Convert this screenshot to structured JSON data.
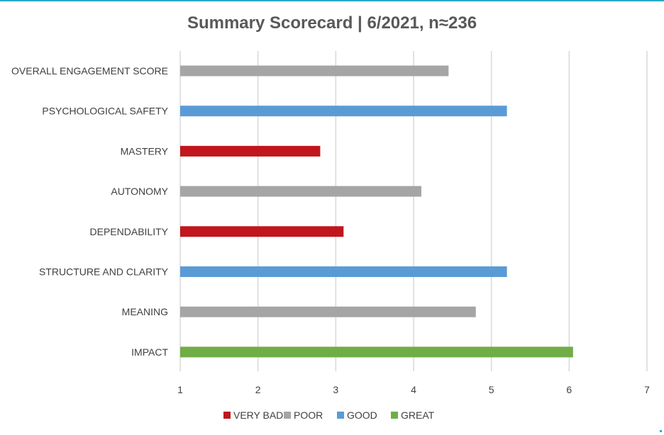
{
  "chart_data": {
    "type": "bar",
    "orientation": "horizontal",
    "title": "Summary Scorecard | 6/2021, n≈236",
    "xlim": [
      1,
      7
    ],
    "ticks": [
      "1",
      "2",
      "3",
      "4",
      "5",
      "6",
      "7"
    ],
    "grid": true,
    "legend_position": "bottom",
    "legend": [
      {
        "label": "VERY BAD",
        "color": "#c0161c"
      },
      {
        "label": "POOR",
        "color": "#a5a5a5"
      },
      {
        "label": "GOOD",
        "color": "#5b9bd5"
      },
      {
        "label": "GREAT",
        "color": "#70ad47"
      }
    ],
    "categories": [
      {
        "label": "OVERALL ENGAGEMENT SCORE",
        "value": 4.45,
        "rating": "POOR"
      },
      {
        "label": "PSYCHOLOGICAL SAFETY",
        "value": 5.2,
        "rating": "GOOD"
      },
      {
        "label": "MASTERY",
        "value": 2.8,
        "rating": "VERY BAD"
      },
      {
        "label": "AUTONOMY",
        "value": 4.1,
        "rating": "POOR"
      },
      {
        "label": "DEPENDABILITY",
        "value": 3.1,
        "rating": "VERY BAD"
      },
      {
        "label": "STRUCTURE AND CLARITY",
        "value": 5.2,
        "rating": "GOOD"
      },
      {
        "label": "MEANING",
        "value": 4.8,
        "rating": "POOR"
      },
      {
        "label": "IMPACT",
        "value": 6.05,
        "rating": "GREAT"
      }
    ]
  }
}
